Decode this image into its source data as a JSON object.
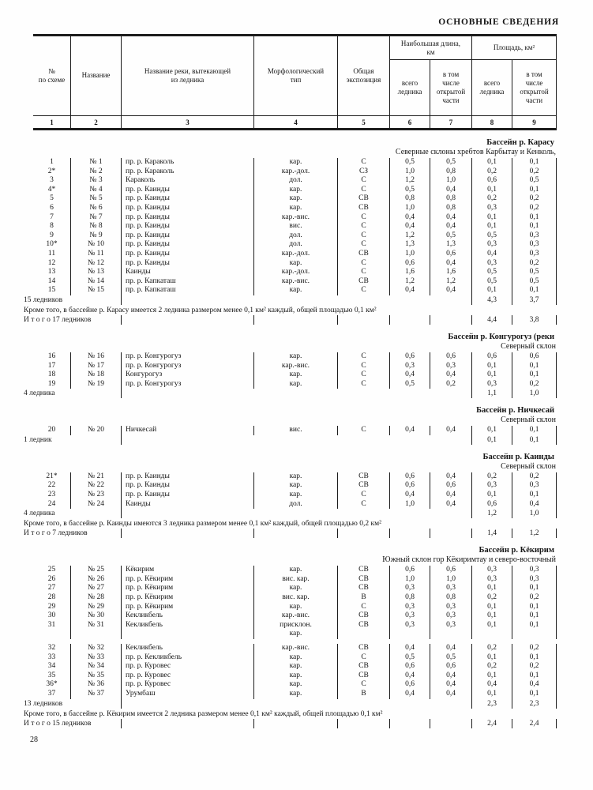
{
  "page": {
    "title": "ОСНОВНЫЕ СВЕДЕНИЯ",
    "page_number": "28"
  },
  "table_header": {
    "col1": "№\nпо схеме",
    "col2": "Название",
    "col3": "Название реки, вытекающей\nиз ледника",
    "col4": "Морфологический\nтип",
    "col5": "Общая\nэкспозиция",
    "group_length": "Наибольшая длина,\nкм",
    "group_area": "Площадь, км²",
    "sub_length_total": "всего\nледника",
    "sub_length_open": "в том\nчисле\nоткрытой\nчасти",
    "sub_area_total": "всего\nледника",
    "sub_area_open": "в том\nчисле\nоткрытой\nчасти",
    "numbers": [
      "1",
      "2",
      "3",
      "4",
      "5",
      "6",
      "7",
      "8",
      "9"
    ]
  },
  "sections": [
    {
      "title": "Бассейн р. Карасу",
      "subtitle": "Северные склоны хребтов Карбытау и Кенколь,",
      "rows": [
        [
          "1",
          "№ 1",
          "пр. р. Караколь",
          "кар.",
          "С",
          "0,5",
          "0,5",
          "0,1",
          "0,1"
        ],
        [
          "2*",
          "№ 2",
          "пр. р. Караколь",
          "кар.-дол.",
          "СЗ",
          "1,0",
          "0,8",
          "0,2",
          "0,2"
        ],
        [
          "3",
          "№ 3",
          "Караколь",
          "дол.",
          "С",
          "1,2",
          "1,0",
          "0,6",
          "0,5"
        ],
        [
          "4*",
          "№ 4",
          "пр. р. Каинды",
          "кар.",
          "С",
          "0,5",
          "0,4",
          "0,1",
          "0,1"
        ],
        [
          "5",
          "№ 5",
          "пр. р. Каинды",
          "кар.",
          "СВ",
          "0,8",
          "0,8",
          "0,2",
          "0,2"
        ],
        [
          "6",
          "№ 6",
          "пр. р. Каинды",
          "кар.",
          "СВ",
          "1,0",
          "0,8",
          "0,3",
          "0,2"
        ],
        [
          "7",
          "№ 7",
          "пр. р. Каинды",
          "кар.-вис.",
          "С",
          "0,4",
          "0,4",
          "0,1",
          "0,1"
        ],
        [
          "8",
          "№ 8",
          "пр. р. Каинды",
          "вис.",
          "С",
          "0,4",
          "0,4",
          "0,1",
          "0,1"
        ],
        [
          "9",
          "№ 9",
          "пр. р. Каинды",
          "дол.",
          "С",
          "1,2",
          "0,5",
          "0,5",
          "0,3"
        ],
        [
          "10*",
          "№ 10",
          "пр. р. Каинды",
          "дол.",
          "С",
          "1,3",
          "1,3",
          "0,3",
          "0,3"
        ],
        [
          "11",
          "№ 11",
          "пр. р. Каинды",
          "кар.-дол.",
          "СВ",
          "1,0",
          "0,6",
          "0,4",
          "0,3"
        ],
        [
          "12",
          "№ 12",
          "пр. р. Каинды",
          "кар.",
          "С",
          "0,6",
          "0,4",
          "0,3",
          "0,2"
        ],
        [
          "13",
          "№ 13",
          "Каинды",
          "кар.-дол.",
          "С",
          "1,6",
          "1,6",
          "0,5",
          "0,5"
        ],
        [
          "14",
          "№ 14",
          "пр. р. Капкаташ",
          "кар.-вис.",
          "СВ",
          "1,2",
          "1,2",
          "0,5",
          "0,5"
        ],
        [
          "15",
          "№ 15",
          "пр. р. Капкаташ",
          "кар.",
          "С",
          "0,4",
          "0,4",
          "0,1",
          "0,1"
        ]
      ],
      "summary": {
        "label": "15 ледников",
        "area_total": "4,3",
        "area_open": "3,7"
      },
      "note": "Кроме того, в бассейне р. Карасу имеется 2 ледника размером менее 0,1 км² каждый, общей площадью 0,1 км²",
      "total": {
        "label": "И т о г о  17 ледников",
        "area_total": "4,4",
        "area_open": "3,8"
      }
    },
    {
      "title": "Бассейн р. Конгурогуз (реки",
      "subtitle": "Северный склон",
      "rows": [
        [
          "16",
          "№ 16",
          "пр. р. Конгурогуз",
          "кар.",
          "С",
          "0,6",
          "0,6",
          "0,6",
          "0,6"
        ],
        [
          "17",
          "№ 17",
          "пр. р. Конгурогуз",
          "кар.-вис.",
          "С",
          "0,3",
          "0,3",
          "0,1",
          "0,1"
        ],
        [
          "18",
          "№ 18",
          "Конгурогуз",
          "кар.",
          "С",
          "0,4",
          "0,4",
          "0,1",
          "0,1"
        ],
        [
          "19",
          "№ 19",
          "пр. р. Конгурогуз",
          "кар.",
          "С",
          "0,5",
          "0,2",
          "0,3",
          "0,2"
        ]
      ],
      "summary": {
        "label": "4 ледника",
        "area_total": "1,1",
        "area_open": "1,0"
      }
    },
    {
      "title": "Бассейн р. Ничкесай",
      "subtitle": "Северный склон",
      "rows": [
        [
          "20",
          "№ 20",
          "Ничкесай",
          "вис.",
          "С",
          "0,4",
          "0,4",
          "0,1",
          "0,1"
        ]
      ],
      "summary": {
        "label": "1 ледник",
        "area_total": "0,1",
        "area_open": "0,1"
      }
    },
    {
      "title": "Бассейн р. Каинды",
      "subtitle": "Северный склон",
      "rows": [
        [
          "21*",
          "№ 21",
          "пр. р. Каинды",
          "кар.",
          "СВ",
          "0,6",
          "0,4",
          "0,2",
          "0,2"
        ],
        [
          "22",
          "№ 22",
          "пр. р. Каинды",
          "кар.",
          "СВ",
          "0,6",
          "0,6",
          "0,3",
          "0,3"
        ],
        [
          "23",
          "№ 23",
          "пр. р. Каинды",
          "кар.",
          "С",
          "0,4",
          "0,4",
          "0,1",
          "0,1"
        ],
        [
          "24",
          "№ 24",
          "Каинды",
          "дол.",
          "С",
          "1,0",
          "0,4",
          "0,6",
          "0,4"
        ]
      ],
      "summary": {
        "label": "4 ледника",
        "area_total": "1,2",
        "area_open": "1,0"
      },
      "note": "Кроме того, в бассейне р. Каинды имеются 3 ледника размером менее 0,1 км² каждый, общей площадью 0,2 км²",
      "total": {
        "label": "И т о г о  7 ледников",
        "area_total": "1,4",
        "area_open": "1,2"
      }
    },
    {
      "title": "Бассейн р. Кёкирим",
      "subtitle": "Южный склон гор Кёкиримтау и северо-восточный",
      "rows": [
        [
          "25",
          "№ 25",
          "Кёкирим",
          "кар.",
          "СВ",
          "0,6",
          "0,6",
          "0,3",
          "0,3"
        ],
        [
          "26",
          "№ 26",
          "пр. р. Кёкирим",
          "вис. кар.",
          "СВ",
          "1,0",
          "1,0",
          "0,3",
          "0,3"
        ],
        [
          "27",
          "№ 27",
          "пр. р. Кёкирим",
          "кар.",
          "СВ",
          "0,3",
          "0,3",
          "0,1",
          "0,1"
        ],
        [
          "28",
          "№ 28",
          "пр. р. Кёкирим",
          "вис. кар.",
          "В",
          "0,8",
          "0,8",
          "0,2",
          "0,2"
        ],
        [
          "29",
          "№ 29",
          "пр. р. Кёкирим",
          "кар.",
          "С",
          "0,3",
          "0,3",
          "0,1",
          "0,1"
        ],
        [
          "30",
          "№ 30",
          "Кекликбель",
          "кар.-вис.",
          "СВ",
          "0,3",
          "0,3",
          "0,1",
          "0,1"
        ],
        [
          "31",
          "№ 31",
          "Кекликбель",
          "присклон.\nкар.",
          "СВ",
          "0,3",
          "0,3",
          "0,1",
          "0,1"
        ],
        [
          "32",
          "№ 32",
          "Кекликбель",
          "кар.-вис.",
          "СВ",
          "0,4",
          "0,4",
          "0,2",
          "0,2"
        ],
        [
          "33",
          "№ 33",
          "пр. р. Кекликбель",
          "кар.",
          "С",
          "0,5",
          "0,5",
          "0,1",
          "0,1"
        ],
        [
          "34",
          "№ 34",
          "пр. р. Куровес",
          "кар.",
          "СВ",
          "0,6",
          "0,6",
          "0,2",
          "0,2"
        ],
        [
          "35",
          "№ 35",
          "пр. р. Куровес",
          "кар.",
          "СВ",
          "0,4",
          "0,4",
          "0,1",
          "0,1"
        ],
        [
          "36*",
          "№ 36",
          "пр. р. Куровес",
          "кар.",
          "С",
          "0,6",
          "0,4",
          "0,4",
          "0,4"
        ],
        [
          "37",
          "№ 37",
          "Урумбаш",
          "кар.",
          "В",
          "0,4",
          "0,4",
          "0,1",
          "0,1"
        ]
      ],
      "summary": {
        "label": "13 ледников",
        "area_total": "2,3",
        "area_open": "2,3"
      },
      "note": "Кроме того, в бассейне р. Кёкирим имеется 2 ледника размером менее 0,1 км² каждый, общей площадью 0,1 км²",
      "total": {
        "label": "И т о г о  15 ледников",
        "area_total": "2,4",
        "area_open": "2,4"
      }
    }
  ]
}
